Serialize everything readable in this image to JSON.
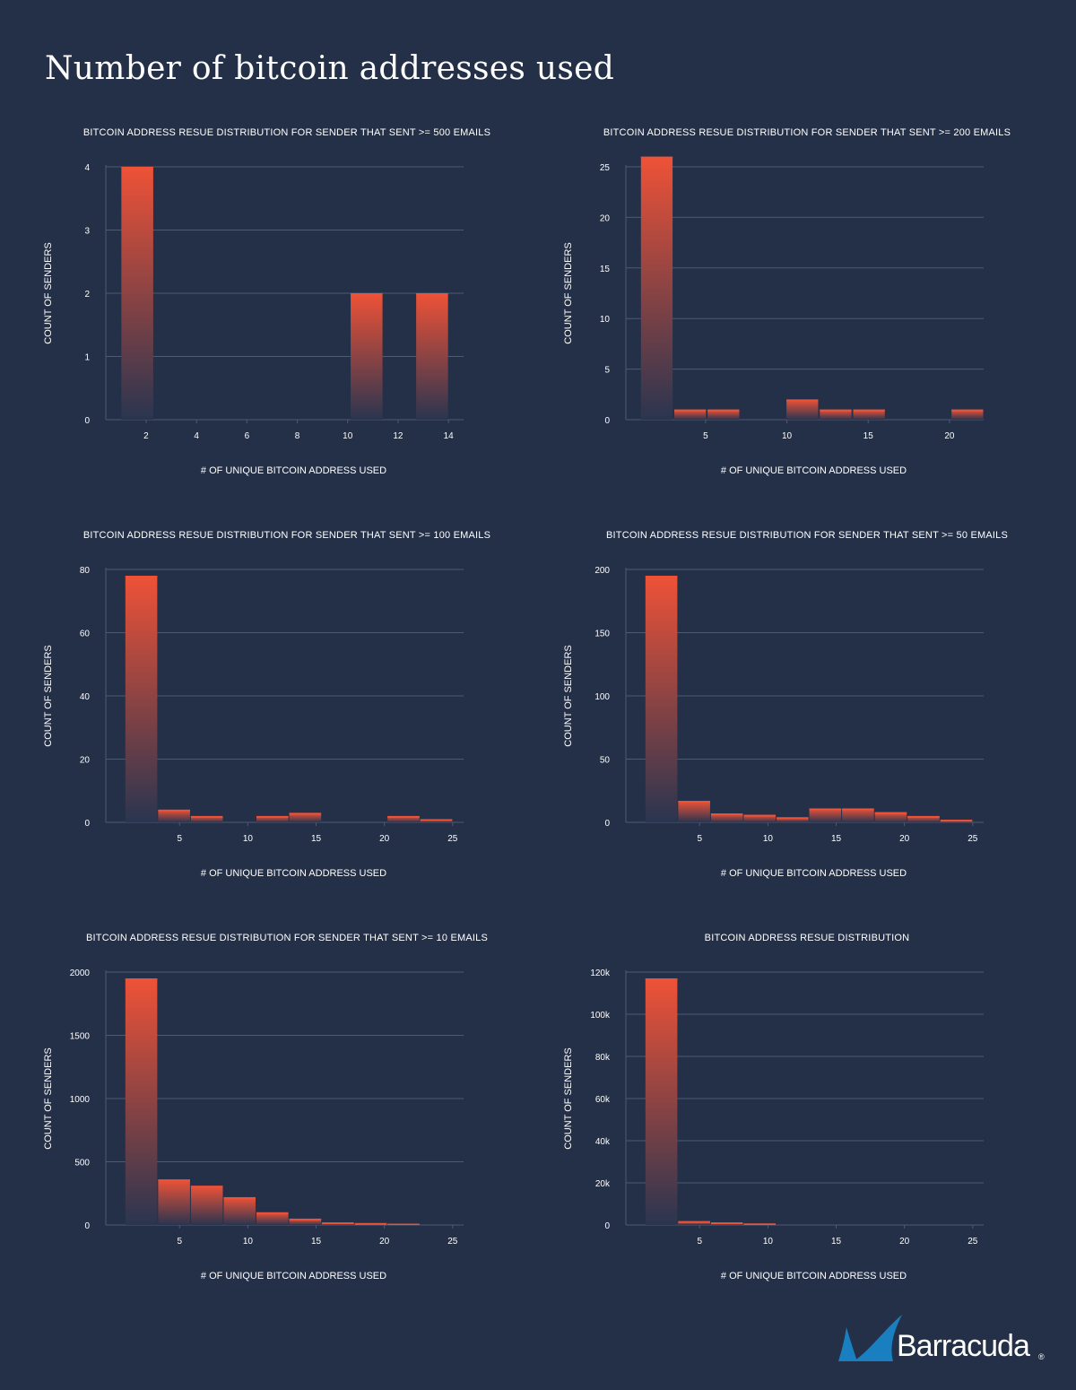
{
  "page": {
    "title": "Number of bitcoin addresses used"
  },
  "colors": {
    "background": "#243047",
    "bar_top": "#ee5237",
    "bar_bottom": "#2a3550",
    "grid": "#4e5a72",
    "logo_blue": "#1a7fc1"
  },
  "logo": {
    "icon": "shark-fin-icon",
    "text": "Barracuda",
    "registered": "®"
  },
  "chart_data": [
    {
      "type": "bar",
      "title": "BITCOIN ADDRESS RESUE DISTRIBUTION FOR SENDER THAT SENT >= 500 EMAILS",
      "xlabel": "# OF UNIQUE BITCOIN ADDRESS USED",
      "ylabel": "COUNT OF SENDERS",
      "xlim": [
        0.4,
        14.6
      ],
      "ylim": [
        0,
        4
      ],
      "xticks": [
        2,
        4,
        6,
        8,
        10,
        12,
        14
      ],
      "yticks": [
        0,
        1,
        2,
        3,
        4
      ],
      "bins": [
        {
          "x0": 1.0,
          "x1": 2.3,
          "value": 4
        },
        {
          "x0": 10.1,
          "x1": 11.4,
          "value": 2
        },
        {
          "x0": 12.7,
          "x1": 14.0,
          "value": 2
        }
      ],
      "grid": true
    },
    {
      "type": "bar",
      "title": "BITCOIN ADDRESS RESUE DISTRIBUTION FOR SENDER THAT SENT >= 200 EMAILS",
      "xlabel": "# OF UNIQUE BITCOIN ADDRESS USED",
      "ylabel": "COUNT OF SENDERS",
      "xlim": [
        0.1,
        22.1
      ],
      "ylim": [
        0,
        25
      ],
      "xticks": [
        5,
        10,
        15,
        20
      ],
      "yticks": [
        0,
        5,
        10,
        15,
        20,
        25
      ],
      "bins": [
        {
          "x0": 1.0,
          "x1": 3.0,
          "value": 26
        },
        {
          "x0": 3.05,
          "x1": 5.05,
          "value": 1
        },
        {
          "x0": 5.1,
          "x1": 7.1,
          "value": 1
        },
        {
          "x0": 9.95,
          "x1": 11.95,
          "value": 2
        },
        {
          "x0": 12.0,
          "x1": 14.0,
          "value": 1
        },
        {
          "x0": 14.05,
          "x1": 16.05,
          "value": 1
        },
        {
          "x0": 20.1,
          "x1": 22.1,
          "value": 1
        }
      ],
      "grid": true
    },
    {
      "type": "bar",
      "title": "BITCOIN ADDRESS RESUE DISTRIBUTION FOR SENDER THAT SENT >= 100 EMAILS",
      "xlabel": "# OF UNIQUE BITCOIN ADDRESS USED",
      "ylabel": "COUNT OF SENDERS",
      "xlim": [
        -0.4,
        25.8
      ],
      "ylim": [
        0,
        80
      ],
      "xticks": [
        5,
        10,
        15,
        20,
        25
      ],
      "yticks": [
        0,
        20,
        40,
        60,
        80
      ],
      "bins": [
        {
          "x0": 1.0,
          "x1": 3.4,
          "value": 78
        },
        {
          "x0": 3.4,
          "x1": 5.8,
          "value": 4
        },
        {
          "x0": 5.8,
          "x1": 8.2,
          "value": 2
        },
        {
          "x0": 10.6,
          "x1": 13.0,
          "value": 2
        },
        {
          "x0": 13.0,
          "x1": 15.4,
          "value": 3
        },
        {
          "x0": 20.2,
          "x1": 22.6,
          "value": 2
        },
        {
          "x0": 22.6,
          "x1": 25.0,
          "value": 1
        }
      ],
      "grid": true
    },
    {
      "type": "bar",
      "title": "BITCOIN ADDRESS RESUE DISTRIBUTION FOR SENDER THAT SENT >= 50 EMAILS",
      "xlabel": "# OF UNIQUE BITCOIN ADDRESS USED",
      "ylabel": "COUNT OF SENDERS",
      "xlim": [
        -0.4,
        25.8
      ],
      "ylim": [
        0,
        200
      ],
      "xticks": [
        5,
        10,
        15,
        20,
        25
      ],
      "yticks": [
        0,
        50,
        100,
        150,
        200
      ],
      "bins": [
        {
          "x0": 1.0,
          "x1": 3.4,
          "value": 195
        },
        {
          "x0": 3.4,
          "x1": 5.8,
          "value": 17
        },
        {
          "x0": 5.8,
          "x1": 8.2,
          "value": 7
        },
        {
          "x0": 8.2,
          "x1": 10.6,
          "value": 6
        },
        {
          "x0": 10.6,
          "x1": 13.0,
          "value": 4
        },
        {
          "x0": 13.0,
          "x1": 15.4,
          "value": 11
        },
        {
          "x0": 15.4,
          "x1": 17.8,
          "value": 11
        },
        {
          "x0": 17.8,
          "x1": 20.2,
          "value": 8
        },
        {
          "x0": 20.2,
          "x1": 22.6,
          "value": 5
        },
        {
          "x0": 22.6,
          "x1": 25.0,
          "value": 2
        }
      ],
      "grid": true
    },
    {
      "type": "bar",
      "title": "BITCOIN ADDRESS RESUE DISTRIBUTION FOR SENDER THAT SENT >= 10 EMAILS",
      "xlabel": "# OF UNIQUE BITCOIN ADDRESS USED",
      "ylabel": "COUNT OF SENDERS",
      "xlim": [
        -0.4,
        25.8
      ],
      "ylim": [
        0,
        2000
      ],
      "xticks": [
        5,
        10,
        15,
        20,
        25
      ],
      "yticks": [
        0,
        500,
        1000,
        1500,
        2000
      ],
      "bins": [
        {
          "x0": 1.0,
          "x1": 3.4,
          "value": 1950
        },
        {
          "x0": 3.4,
          "x1": 5.8,
          "value": 360
        },
        {
          "x0": 5.8,
          "x1": 8.2,
          "value": 310
        },
        {
          "x0": 8.2,
          "x1": 10.6,
          "value": 220
        },
        {
          "x0": 10.6,
          "x1": 13.0,
          "value": 100
        },
        {
          "x0": 13.0,
          "x1": 15.4,
          "value": 50
        },
        {
          "x0": 15.4,
          "x1": 17.8,
          "value": 20
        },
        {
          "x0": 17.8,
          "x1": 20.2,
          "value": 15
        },
        {
          "x0": 20.2,
          "x1": 22.6,
          "value": 10
        }
      ],
      "grid": true
    },
    {
      "type": "bar",
      "title": "BITCOIN ADDRESS RESUE DISTRIBUTION",
      "xlabel": "# OF UNIQUE BITCOIN ADDRESS USED",
      "ylabel": "COUNT OF SENDERS",
      "xlim": [
        -0.4,
        25.8
      ],
      "ylim": [
        0,
        120000
      ],
      "xticks": [
        5,
        10,
        15,
        20,
        25
      ],
      "yticks": [
        0,
        20000,
        40000,
        60000,
        80000,
        100000,
        120000
      ],
      "yticklabels": [
        "0",
        "20k",
        "40k",
        "60k",
        "80k",
        "100k",
        "120k"
      ],
      "bins": [
        {
          "x0": 1.0,
          "x1": 3.4,
          "value": 117000
        },
        {
          "x0": 3.4,
          "x1": 5.8,
          "value": 1800
        },
        {
          "x0": 5.8,
          "x1": 8.2,
          "value": 1200
        },
        {
          "x0": 8.2,
          "x1": 10.6,
          "value": 700
        }
      ],
      "grid": true
    }
  ]
}
